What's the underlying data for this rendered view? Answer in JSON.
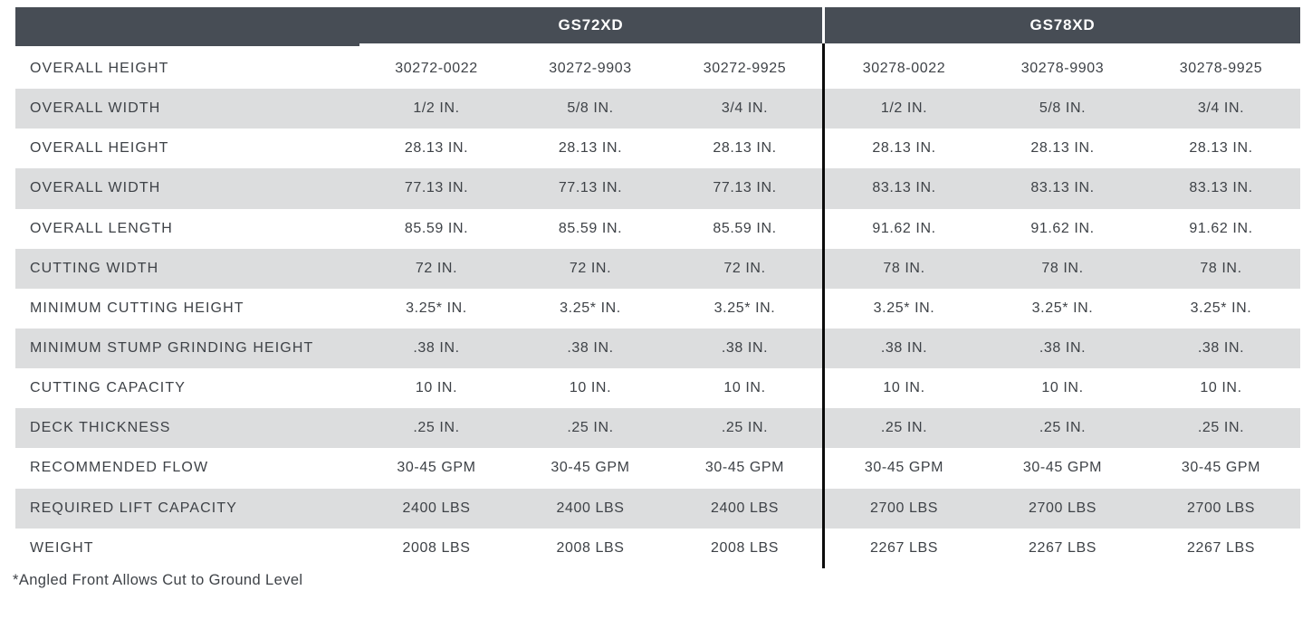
{
  "colors": {
    "header_bg": "#474d55",
    "header_text": "#ffffff",
    "stripe_bg": "#dcddde",
    "body_text": "#3e4247",
    "divider": "#0b0b0b"
  },
  "table": {
    "column_groups": [
      {
        "label": "GS72XD"
      },
      {
        "label": "GS78XD"
      }
    ],
    "rows": [
      {
        "label": "OVERALL HEIGHT",
        "values": [
          "30272-0022",
          "30272-9903",
          "30272-9925",
          "30278-0022",
          "30278-9903",
          "30278-9925"
        ]
      },
      {
        "label": "OVERALL WIDTH",
        "values": [
          "1/2 IN.",
          "5/8 IN.",
          "3/4 IN.",
          "1/2 IN.",
          "5/8 IN.",
          "3/4 IN."
        ]
      },
      {
        "label": "OVERALL HEIGHT",
        "values": [
          "28.13 IN.",
          "28.13 IN.",
          "28.13 IN.",
          "28.13 IN.",
          "28.13 IN.",
          "28.13 IN."
        ]
      },
      {
        "label": "OVERALL WIDTH",
        "values": [
          "77.13 IN.",
          "77.13 IN.",
          "77.13 IN.",
          "83.13 IN.",
          "83.13 IN.",
          "83.13 IN."
        ]
      },
      {
        "label": "OVERALL LENGTH",
        "values": [
          "85.59 IN.",
          "85.59 IN.",
          "85.59 IN.",
          "91.62 IN.",
          "91.62 IN.",
          "91.62 IN."
        ]
      },
      {
        "label": "CUTTING WIDTH",
        "values": [
          "72 IN.",
          "72 IN.",
          "72 IN.",
          "78 IN.",
          "78 IN.",
          "78 IN."
        ]
      },
      {
        "label": "MINIMUM CUTTING HEIGHT",
        "values": [
          "3.25* IN.",
          "3.25* IN.",
          "3.25* IN.",
          "3.25* IN.",
          "3.25* IN.",
          "3.25* IN."
        ]
      },
      {
        "label": "MINIMUM STUMP GRINDING HEIGHT",
        "values": [
          ".38 IN.",
          ".38 IN.",
          ".38 IN.",
          ".38 IN.",
          ".38 IN.",
          ".38 IN."
        ]
      },
      {
        "label": "CUTTING CAPACITY",
        "values": [
          "10 IN.",
          "10 IN.",
          "10 IN.",
          "10 IN.",
          "10 IN.",
          "10 IN."
        ]
      },
      {
        "label": "DECK THICKNESS",
        "values": [
          ".25 IN.",
          ".25 IN.",
          ".25 IN.",
          ".25 IN.",
          ".25 IN.",
          ".25 IN."
        ]
      },
      {
        "label": "RECOMMENDED FLOW",
        "values": [
          "30-45 GPM",
          "30-45 GPM",
          "30-45 GPM",
          "30-45 GPM",
          "30-45 GPM",
          "30-45 GPM"
        ]
      },
      {
        "label": "REQUIRED LIFT CAPACITY",
        "values": [
          "2400 LBS",
          "2400 LBS",
          "2400 LBS",
          "2700 LBS",
          "2700 LBS",
          "2700 LBS"
        ]
      },
      {
        "label": "WEIGHT",
        "values": [
          "2008 LBS",
          "2008 LBS",
          "2008 LBS",
          "2267 LBS",
          "2267 LBS",
          "2267 LBS"
        ]
      }
    ],
    "footnote": "*Angled Front Allows Cut to Ground Level"
  }
}
